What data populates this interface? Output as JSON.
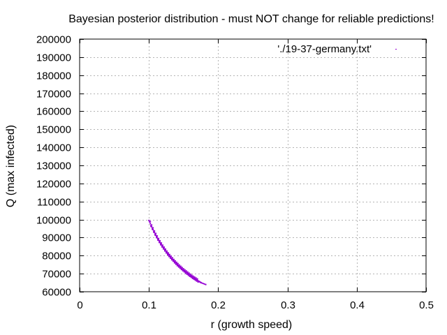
{
  "chart_data": {
    "type": "scatter",
    "title": "Bayesian posterior distribution - must NOT change for reliable predictions!",
    "xlabel": "r (growth speed)",
    "ylabel": "Q (max infected)",
    "xlim": [
      0,
      0.5
    ],
    "ylim": [
      60000,
      200000
    ],
    "xticks": [
      0,
      0.1,
      0.2,
      0.3,
      0.4,
      0.5
    ],
    "xtick_labels": [
      "0",
      "0.1",
      "0.2",
      "0.3",
      "0.4",
      "0.5"
    ],
    "yticks": [
      60000,
      70000,
      80000,
      90000,
      100000,
      110000,
      120000,
      130000,
      140000,
      150000,
      160000,
      170000,
      180000,
      190000,
      200000
    ],
    "ytick_labels": [
      "60000",
      "70000",
      "80000",
      "90000",
      "100000",
      "110000",
      "120000",
      "130000",
      "140000",
      "150000",
      "160000",
      "170000",
      "180000",
      "190000",
      "200000"
    ],
    "grid": true,
    "legend_position": "top-right",
    "series": [
      {
        "name": "'./19-37-germany.txt'",
        "color": "#9400d3",
        "marker": "dot",
        "points": [
          [
            0.1,
            99500
          ],
          [
            0.101,
            98700
          ],
          [
            0.102,
            97800
          ],
          [
            0.103,
            96900
          ],
          [
            0.104,
            96000
          ],
          [
            0.105,
            95200
          ],
          [
            0.106,
            94400
          ],
          [
            0.107,
            93600
          ],
          [
            0.108,
            92800
          ],
          [
            0.109,
            92000
          ],
          [
            0.11,
            91300
          ],
          [
            0.111,
            90600
          ],
          [
            0.112,
            89900
          ],
          [
            0.113,
            89200
          ],
          [
            0.114,
            88600
          ],
          [
            0.115,
            87900
          ],
          [
            0.116,
            87300
          ],
          [
            0.117,
            86700
          ],
          [
            0.118,
            86100
          ],
          [
            0.119,
            85500
          ],
          [
            0.12,
            84900
          ],
          [
            0.121,
            84300
          ],
          [
            0.122,
            83800
          ],
          [
            0.123,
            83200
          ],
          [
            0.124,
            82700
          ],
          [
            0.125,
            82200
          ],
          [
            0.126,
            81700
          ],
          [
            0.127,
            81200
          ],
          [
            0.128,
            80700
          ],
          [
            0.129,
            80200
          ],
          [
            0.13,
            79700
          ],
          [
            0.131,
            79300
          ],
          [
            0.132,
            78800
          ],
          [
            0.133,
            78400
          ],
          [
            0.134,
            77900
          ],
          [
            0.135,
            77500
          ],
          [
            0.136,
            77100
          ],
          [
            0.137,
            76700
          ],
          [
            0.138,
            76300
          ],
          [
            0.139,
            75900
          ],
          [
            0.14,
            75500
          ],
          [
            0.141,
            75100
          ],
          [
            0.142,
            74700
          ],
          [
            0.143,
            74300
          ],
          [
            0.144,
            74000
          ],
          [
            0.145,
            73600
          ],
          [
            0.146,
            73300
          ],
          [
            0.147,
            72900
          ],
          [
            0.148,
            72600
          ],
          [
            0.149,
            72200
          ],
          [
            0.15,
            71900
          ],
          [
            0.151,
            71600
          ],
          [
            0.152,
            71300
          ],
          [
            0.153,
            71000
          ],
          [
            0.154,
            70700
          ],
          [
            0.155,
            70400
          ],
          [
            0.156,
            70100
          ],
          [
            0.157,
            69800
          ],
          [
            0.158,
            69500
          ],
          [
            0.159,
            69200
          ],
          [
            0.16,
            68900
          ],
          [
            0.161,
            68600
          ],
          [
            0.162,
            68300
          ],
          [
            0.163,
            68100
          ],
          [
            0.164,
            67800
          ],
          [
            0.165,
            67500
          ],
          [
            0.166,
            67300
          ],
          [
            0.167,
            67000
          ],
          [
            0.168,
            66800
          ],
          [
            0.169,
            66500
          ],
          [
            0.17,
            66300
          ],
          [
            0.171,
            66000
          ],
          [
            0.172,
            65800
          ],
          [
            0.174,
            65300
          ],
          [
            0.176,
            64900
          ],
          [
            0.102,
            98900
          ],
          [
            0.104,
            97000
          ],
          [
            0.106,
            95400
          ],
          [
            0.108,
            93700
          ],
          [
            0.11,
            92300
          ],
          [
            0.112,
            90900
          ],
          [
            0.114,
            89500
          ],
          [
            0.116,
            88200
          ],
          [
            0.118,
            87000
          ],
          [
            0.12,
            85800
          ],
          [
            0.122,
            84700
          ],
          [
            0.124,
            83600
          ],
          [
            0.126,
            82500
          ],
          [
            0.128,
            81500
          ],
          [
            0.13,
            80600
          ],
          [
            0.132,
            79700
          ],
          [
            0.134,
            78800
          ],
          [
            0.136,
            77900
          ],
          [
            0.138,
            77100
          ],
          [
            0.14,
            76300
          ],
          [
            0.142,
            75600
          ],
          [
            0.144,
            74800
          ],
          [
            0.146,
            74100
          ],
          [
            0.148,
            73400
          ],
          [
            0.15,
            72700
          ],
          [
            0.152,
            72100
          ],
          [
            0.154,
            71500
          ],
          [
            0.156,
            70900
          ],
          [
            0.158,
            70300
          ],
          [
            0.16,
            69700
          ],
          [
            0.162,
            69100
          ],
          [
            0.164,
            68600
          ],
          [
            0.166,
            68100
          ],
          [
            0.168,
            67600
          ],
          [
            0.17,
            67100
          ],
          [
            0.103,
            96200
          ],
          [
            0.105,
            94600
          ],
          [
            0.107,
            93000
          ],
          [
            0.109,
            91400
          ],
          [
            0.111,
            90000
          ],
          [
            0.113,
            88600
          ],
          [
            0.115,
            87300
          ],
          [
            0.117,
            86000
          ],
          [
            0.119,
            84800
          ],
          [
            0.121,
            83700
          ],
          [
            0.123,
            82600
          ],
          [
            0.125,
            81500
          ],
          [
            0.127,
            80500
          ],
          [
            0.129,
            79500
          ],
          [
            0.131,
            78600
          ],
          [
            0.133,
            77700
          ],
          [
            0.135,
            76900
          ],
          [
            0.137,
            76000
          ],
          [
            0.139,
            75200
          ],
          [
            0.141,
            74400
          ],
          [
            0.143,
            73700
          ],
          [
            0.145,
            73000
          ],
          [
            0.147,
            72300
          ],
          [
            0.149,
            71600
          ],
          [
            0.151,
            71000
          ],
          [
            0.153,
            70300
          ],
          [
            0.155,
            69700
          ],
          [
            0.157,
            69100
          ],
          [
            0.159,
            68500
          ],
          [
            0.161,
            68000
          ],
          [
            0.163,
            67400
          ],
          [
            0.165,
            66900
          ],
          [
            0.167,
            66400
          ],
          [
            0.169,
            65900
          ],
          [
            0.171,
            65400
          ],
          [
            0.173,
            65600
          ],
          [
            0.175,
            65100
          ],
          [
            0.178,
            64600
          ],
          [
            0.18,
            64300
          ],
          [
            0.182,
            64000
          ]
        ]
      }
    ]
  }
}
